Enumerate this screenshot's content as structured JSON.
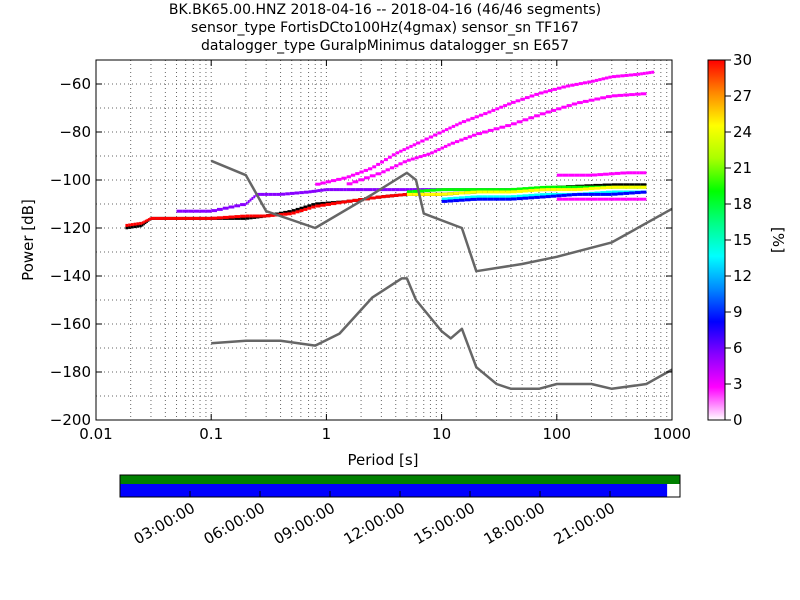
{
  "chart_data": {
    "type": "heatmap",
    "title_lines": [
      "BK.BK65.00.HNZ   2018-04-16 -- 2018-04-16  (46/46 segments)",
      "sensor_type FortisDCto100Hz(4gmax) sensor_sn TF167",
      "datalogger_type GuralpMinimus datalogger_sn E657"
    ],
    "xlabel": "Period [s]",
    "ylabel": "Power [dB]",
    "x_scale": "log",
    "xlim": [
      0.01,
      1000
    ],
    "ylim": [
      -200,
      -50
    ],
    "x_ticks": [
      0.01,
      0.1,
      1,
      10,
      100,
      1000
    ],
    "x_tick_labels": [
      "0.01",
      "0.1",
      "1",
      "10",
      "100",
      "1000"
    ],
    "y_ticks": [
      -200,
      -180,
      -160,
      -140,
      -120,
      -100,
      -80,
      -60
    ],
    "y_tick_labels": [
      "−200",
      "−180",
      "−160",
      "−140",
      "−120",
      "−100",
      "−80",
      "−60"
    ],
    "grid": "dotted vertical and horizontal",
    "colorbar": {
      "label": "[%]",
      "range": [
        0,
        30
      ],
      "ticks": [
        0,
        3,
        6,
        9,
        12,
        15,
        18,
        21,
        24,
        27,
        30
      ],
      "colors": [
        "#ffffff",
        "#ff00ff",
        "#8800ff",
        "#0000ff",
        "#0088ff",
        "#00ffff",
        "#00ff88",
        "#00ff00",
        "#aaff00",
        "#ffff00",
        "#ff8800",
        "#ff0000"
      ]
    },
    "noise_models": [
      {
        "x": [
          0.1,
          0.2,
          0.3,
          0.8,
          2.5,
          5,
          6,
          7,
          15,
          20,
          50,
          100,
          300,
          1000
        ],
        "y": [
          -92,
          -98,
          -113,
          -120,
          -106,
          -97,
          -100,
          -114,
          -120,
          -138,
          -135,
          -132,
          -126,
          -112
        ]
      },
      {
        "x": [
          0.1,
          0.2,
          0.4,
          0.8,
          1.3,
          2.5,
          4.5,
          5,
          6,
          10,
          12,
          15,
          20,
          30,
          40,
          70,
          100,
          200,
          300,
          600,
          1000
        ],
        "y": [
          -168,
          -167,
          -167,
          -169,
          -164,
          -149,
          -141,
          -141,
          -150,
          -163,
          -166,
          -162,
          -178,
          -185,
          -187,
          -187,
          -185,
          -185,
          -187,
          -185,
          -179
        ]
      }
    ],
    "psd_clouds": [
      {
        "color": "#000000",
        "x": [
          0.018,
          0.025,
          0.03,
          0.05,
          0.1,
          0.2,
          0.3,
          0.5,
          0.8,
          1.5,
          3,
          5,
          10,
          20,
          50,
          100,
          300,
          600
        ],
        "y": [
          -120,
          -119,
          -116,
          -116,
          -116,
          -116,
          -115,
          -113,
          -110,
          -109,
          -107,
          -106,
          -106,
          -105,
          -104,
          -103,
          -102,
          -102
        ]
      },
      {
        "color": "#ff0000",
        "x": [
          0.018,
          0.025,
          0.03,
          0.05,
          0.1,
          0.2,
          0.3,
          0.5,
          0.8,
          1.5,
          3,
          5,
          10
        ],
        "y": [
          -119,
          -118,
          -116,
          -116,
          -116,
          -115,
          -115,
          -114,
          -111,
          -109,
          -107,
          -106,
          -106
        ]
      },
      {
        "color": "#8800ff",
        "x": [
          0.05,
          0.1,
          0.2,
          0.25,
          0.4,
          0.7,
          1,
          1.5,
          2.5,
          4,
          6,
          10,
          15,
          25,
          40,
          70,
          100
        ],
        "y": [
          -113,
          -113,
          -110,
          -106,
          -106,
          -105,
          -104,
          -104,
          -104,
          -104,
          -104,
          -104,
          -104,
          -104,
          -104,
          -104,
          -104
        ]
      },
      {
        "color": "#ff00ff",
        "x": [
          0.8,
          1.5,
          2.5,
          4,
          6,
          10,
          15,
          25,
          40,
          70,
          120,
          200,
          300,
          500,
          700
        ],
        "y": [
          -102,
          -99,
          -95,
          -89,
          -85,
          -80,
          -76,
          -72,
          -68,
          -64,
          -61,
          -59,
          -57,
          -56,
          -55
        ]
      },
      {
        "color": "#ff00ff",
        "x": [
          1.5,
          3,
          5,
          8,
          12,
          20,
          40,
          80,
          150,
          300,
          600
        ],
        "y": [
          -102,
          -97,
          -92,
          -89,
          -85,
          -81,
          -77,
          -72,
          -68,
          -65,
          -64
        ]
      },
      {
        "color": "#00ff00",
        "x": [
          5,
          10,
          20,
          40,
          80,
          150,
          300,
          600
        ],
        "y": [
          -105,
          -104,
          -104,
          -104,
          -103,
          -103,
          -103,
          -103
        ]
      },
      {
        "color": "#ffff00",
        "x": [
          5,
          10,
          20,
          40,
          80,
          150,
          300,
          600
        ],
        "y": [
          -106,
          -106,
          -105,
          -105,
          -104,
          -104,
          -103,
          -103
        ]
      },
      {
        "color": "#00ffff",
        "x": [
          10,
          20,
          40,
          80,
          150,
          300,
          600
        ],
        "y": [
          -108,
          -107,
          -107,
          -106,
          -106,
          -105,
          -105
        ]
      },
      {
        "color": "#0000ff",
        "x": [
          10,
          20,
          40,
          80,
          150,
          300,
          600
        ],
        "y": [
          -109,
          -108,
          -108,
          -107,
          -106,
          -106,
          -105
        ]
      },
      {
        "color": "#ff00ff",
        "x": [
          100,
          200,
          400,
          600
        ],
        "y": [
          -98,
          -98,
          -97,
          -97
        ]
      },
      {
        "color": "#ff00ff",
        "x": [
          100,
          200,
          400,
          600
        ],
        "y": [
          -108,
          -108,
          -108,
          -108
        ]
      }
    ],
    "timeline": {
      "tick_labels": [
        "03:00:00",
        "06:00:00",
        "09:00:00",
        "12:00:00",
        "15:00:00",
        "18:00:00",
        "21:00:00"
      ],
      "top_bar_fraction": 1.0,
      "bottom_bar_fraction": 0.977,
      "top_bar_color": "#008000",
      "bottom_bar_color": "#0000ff"
    }
  }
}
